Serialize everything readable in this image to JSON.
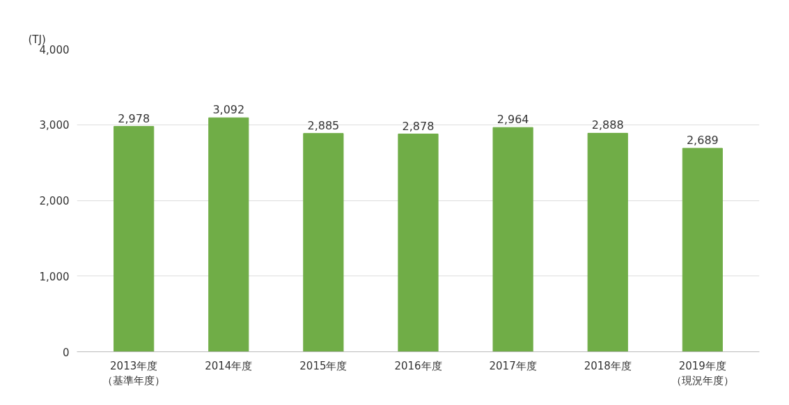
{
  "chart_data": {
    "type": "bar",
    "ylabel": "(TJ)",
    "categories": [
      "2013年度（基準年度）",
      "2014年度",
      "2015年度",
      "2016年度",
      "2017年度",
      "2018年度",
      "2019年度（現況年度）"
    ],
    "value_labels": [
      "2,978",
      "3,092",
      "2,885",
      "2,878",
      "2,964",
      "2,888",
      "2,689"
    ],
    "values": [
      2978,
      3092,
      2885,
      2878,
      2964,
      2888,
      2689
    ],
    "color": "#70ad47",
    "ylim": [
      0,
      4000
    ],
    "yticks": [
      {
        "value": 0,
        "label": "0"
      },
      {
        "value": 1000,
        "label": "1,000"
      },
      {
        "value": 2000,
        "label": "2,000"
      },
      {
        "value": 3000,
        "label": "3,000"
      },
      {
        "value": 4000,
        "label": "4,000"
      }
    ],
    "grid": "y"
  }
}
